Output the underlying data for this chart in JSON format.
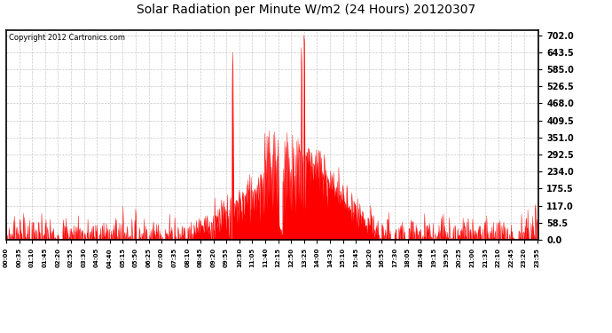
{
  "title": "Solar Radiation per Minute W/m2 (24 Hours) 20120307",
  "copyright_text": "Copyright 2012 Cartronics.com",
  "fill_color": "#FF0000",
  "line_color": "#FF0000",
  "background_color": "#FFFFFF",
  "grid_color": "#BBBBBB",
  "dashed_line_color": "#FF0000",
  "y_tick_values": [
    0.0,
    58.5,
    117.0,
    175.5,
    234.0,
    292.5,
    351.0,
    409.5,
    468.0,
    526.5,
    585.0,
    643.5,
    702.0
  ],
  "ylim": [
    0,
    720
  ],
  "total_minutes": 1440,
  "tick_interval": 35
}
